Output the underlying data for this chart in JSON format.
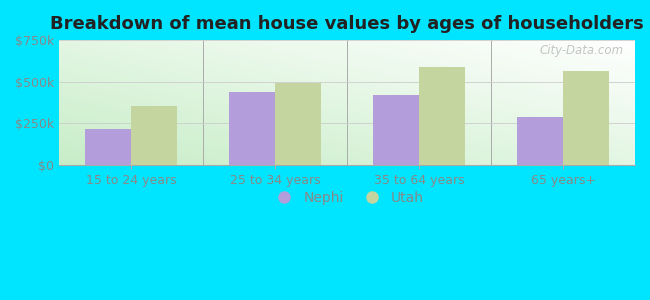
{
  "title": "Breakdown of mean house values by ages of householders",
  "categories": [
    "15 to 24 years",
    "25 to 34 years",
    "35 to 64 years",
    "65 years+"
  ],
  "nephi_values": [
    215000,
    440000,
    420000,
    285000
  ],
  "utah_values": [
    355000,
    490000,
    590000,
    565000
  ],
  "nephi_color": "#b39ddb",
  "utah_color": "#c5d5a0",
  "ylim": [
    0,
    750000
  ],
  "yticks": [
    0,
    250000,
    500000,
    750000
  ],
  "ytick_labels": [
    "$0",
    "$250k",
    "$500k",
    "$750k"
  ],
  "outer_background": "#00e5ff",
  "bar_width": 0.32,
  "legend_labels": [
    "Nephi",
    "Utah"
  ],
  "watermark": "City-Data.com",
  "tick_color": "#888888",
  "title_color": "#222222",
  "title_fontsize": 13
}
